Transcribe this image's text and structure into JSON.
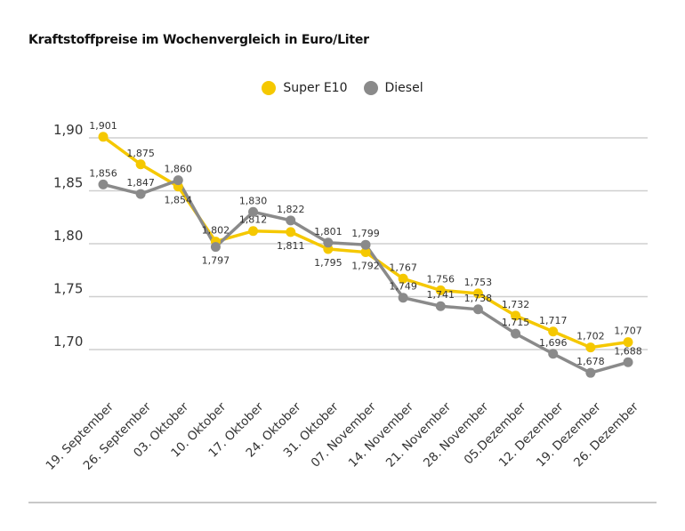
{
  "chart_data": {
    "type": "line",
    "title": "Kraftstoffpreise im Wochenvergleich in Euro/Liter",
    "xlabel": "",
    "ylabel": "",
    "categories": [
      "19. September",
      "26. September",
      "03. Oktober",
      "10. Oktober",
      "17. Oktober",
      "24. Oktober",
      "31. Oktober",
      "07. November",
      "14. November",
      "21. November",
      "28. November",
      "05.Dezember",
      "12. Dezember",
      "19. Dezember",
      "26. Dezember"
    ],
    "series": [
      {
        "name": "Super E10",
        "color": "#f5c800",
        "values": [
          1.901,
          1.875,
          1.854,
          1.802,
          1.812,
          1.811,
          1.795,
          1.792,
          1.767,
          1.756,
          1.753,
          1.732,
          1.717,
          1.702,
          1.707
        ],
        "labels": [
          "1,901",
          "1,875",
          "1,854",
          "1,802",
          "1,812",
          "1,811",
          "1,795",
          "1,792",
          "1,767",
          "1,756",
          "1,753",
          "1,732",
          "1,717",
          "1,702",
          "1,707"
        ]
      },
      {
        "name": "Diesel",
        "color": "#8a8a8a",
        "values": [
          1.856,
          1.847,
          1.86,
          1.797,
          1.83,
          1.822,
          1.801,
          1.799,
          1.749,
          1.741,
          1.738,
          1.715,
          1.696,
          1.678,
          1.688
        ],
        "labels": [
          "1,856",
          "1,847",
          "1,860",
          "1,797",
          "1,830",
          "1,822",
          "1,801",
          "1,799",
          "1,749",
          "1,741",
          "1,738",
          "1,715",
          "1,696",
          "1,678",
          "1,688"
        ]
      }
    ],
    "yticks": [
      1.9,
      1.85,
      1.8,
      1.75,
      1.7
    ],
    "ytick_labels": [
      "1,90",
      "1,85",
      "1,80",
      "1,75",
      "1,70"
    ],
    "grid": true,
    "legend_position": "top-center"
  }
}
